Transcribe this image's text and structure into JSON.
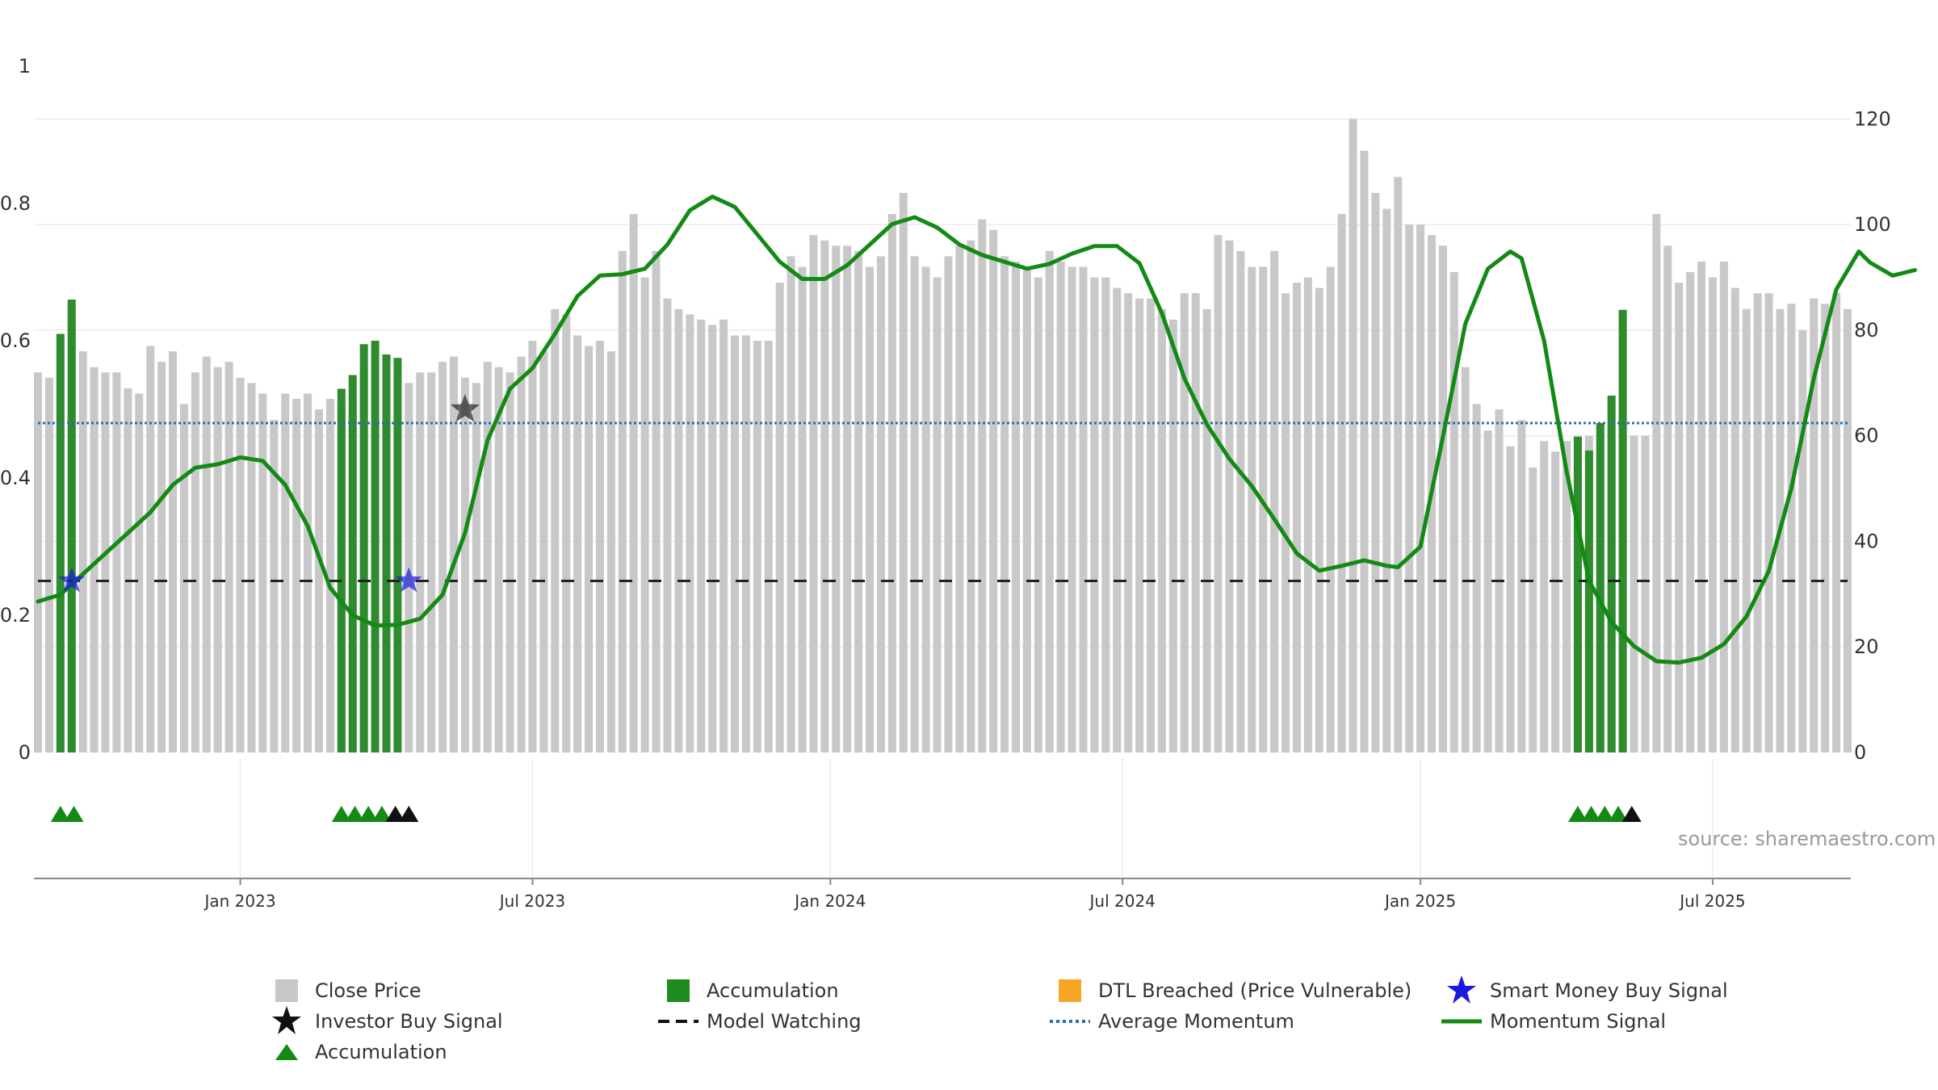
{
  "chart_data": {
    "type": "bar",
    "source_label": "source: sharemaestro.com",
    "left_axis": {
      "range": [
        0,
        1
      ],
      "ticks": [
        "0",
        "0.2",
        "0.4",
        "0.6",
        "0.8",
        "1"
      ]
    },
    "right_axis": {
      "range": [
        0,
        130
      ],
      "ticks": [
        "0",
        "20",
        "40",
        "60",
        "80",
        "100",
        "120"
      ]
    },
    "x_axis": {
      "ticks": [
        {
          "label": "Jan 2023",
          "week": 18
        },
        {
          "label": "Jul 2023",
          "week": 44
        },
        {
          "label": "Jan 2024",
          "week": 70.5
        },
        {
          "label": "Jul 2024",
          "week": 96.5
        },
        {
          "label": "Jan 2025",
          "week": 123
        },
        {
          "label": "Jul 2025",
          "week": 149
        }
      ]
    },
    "close_price": [
      72,
      71,
      75,
      81,
      76,
      73,
      72,
      72,
      69,
      68,
      77,
      74,
      76,
      66,
      72,
      75,
      73,
      74,
      71,
      70,
      68,
      63,
      68,
      67,
      68,
      65,
      67,
      66,
      67,
      73,
      72,
      73,
      72,
      70,
      72,
      72,
      74,
      75,
      71,
      70,
      74,
      73,
      72,
      75,
      78,
      76,
      84,
      83,
      79,
      77,
      78,
      76,
      95,
      102,
      90,
      95,
      86,
      84,
      83,
      82,
      81,
      82,
      79,
      79,
      78,
      78,
      89,
      94,
      92,
      98,
      97,
      96,
      96,
      95,
      92,
      94,
      102,
      106,
      94,
      92,
      90,
      94,
      96,
      97,
      101,
      99,
      94,
      93,
      92,
      90,
      95,
      93,
      92,
      92,
      90,
      90,
      88,
      87,
      86,
      86,
      84,
      82,
      87,
      87,
      84,
      98,
      97,
      95,
      92,
      92,
      95,
      87,
      89,
      90,
      88,
      92,
      102,
      120,
      114,
      106,
      103,
      109,
      100,
      100,
      98,
      96,
      91,
      73,
      66,
      61,
      65,
      58,
      63,
      54,
      59,
      57,
      59,
      60,
      60,
      60,
      60,
      60,
      60,
      60,
      102,
      96,
      89,
      91,
      93,
      90,
      93,
      88,
      84,
      87,
      87,
      84,
      85,
      80,
      86,
      85,
      87,
      84
    ],
    "accumulation_bars": [
      {
        "week": 2,
        "value": 0.61
      },
      {
        "week": 3,
        "value": 0.66
      },
      {
        "week": 27,
        "value": 0.53
      },
      {
        "week": 28,
        "value": 0.55
      },
      {
        "week": 29,
        "value": 0.595
      },
      {
        "week": 30,
        "value": 0.6
      },
      {
        "week": 31,
        "value": 0.58
      },
      {
        "week": 32,
        "value": 0.575
      },
      {
        "week": 137,
        "value": 0.46
      },
      {
        "week": 138,
        "value": 0.44
      },
      {
        "week": 139,
        "value": 0.48
      },
      {
        "week": 140,
        "value": 0.52
      },
      {
        "week": 141,
        "value": 0.645
      }
    ],
    "momentum": [
      [
        0,
        0.22
      ],
      [
        2,
        0.23
      ],
      [
        4,
        0.26
      ],
      [
        6,
        0.29
      ],
      [
        8,
        0.32
      ],
      [
        10,
        0.35
      ],
      [
        12,
        0.39
      ],
      [
        14,
        0.415
      ],
      [
        16,
        0.42
      ],
      [
        18,
        0.43
      ],
      [
        20,
        0.425
      ],
      [
        22,
        0.39
      ],
      [
        24,
        0.33
      ],
      [
        26,
        0.24
      ],
      [
        28,
        0.2
      ],
      [
        30,
        0.185
      ],
      [
        32,
        0.186
      ],
      [
        34,
        0.195
      ],
      [
        36,
        0.23
      ],
      [
        38,
        0.32
      ],
      [
        40,
        0.455
      ],
      [
        42,
        0.53
      ],
      [
        44,
        0.56
      ],
      [
        46,
        0.61
      ],
      [
        48,
        0.665
      ],
      [
        50,
        0.695
      ],
      [
        52,
        0.697
      ],
      [
        54,
        0.705
      ],
      [
        56,
        0.74
      ],
      [
        58,
        0.79
      ],
      [
        60,
        0.81
      ],
      [
        62,
        0.795
      ],
      [
        64,
        0.755
      ],
      [
        66,
        0.715
      ],
      [
        68,
        0.69
      ],
      [
        70,
        0.69
      ],
      [
        72,
        0.71
      ],
      [
        74,
        0.74
      ],
      [
        76,
        0.77
      ],
      [
        78,
        0.78
      ],
      [
        80,
        0.765
      ],
      [
        82,
        0.74
      ],
      [
        84,
        0.725
      ],
      [
        86,
        0.715
      ],
      [
        88,
        0.705
      ],
      [
        90,
        0.712
      ],
      [
        92,
        0.727
      ],
      [
        94,
        0.738
      ],
      [
        96,
        0.738
      ],
      [
        98,
        0.713
      ],
      [
        100,
        0.64
      ],
      [
        102,
        0.545
      ],
      [
        104,
        0.478
      ],
      [
        106,
        0.428
      ],
      [
        108,
        0.388
      ],
      [
        110,
        0.34
      ],
      [
        112,
        0.29
      ],
      [
        114,
        0.265
      ],
      [
        116,
        0.272
      ],
      [
        118,
        0.28
      ],
      [
        120,
        0.272
      ],
      [
        121,
        0.27
      ],
      [
        123,
        0.3
      ],
      [
        125,
        0.46
      ],
      [
        127,
        0.625
      ],
      [
        129,
        0.705
      ],
      [
        131,
        0.73
      ],
      [
        132,
        0.72
      ],
      [
        134,
        0.6
      ],
      [
        136,
        0.41
      ],
      [
        138,
        0.25
      ],
      [
        140,
        0.19
      ],
      [
        142,
        0.155
      ],
      [
        144,
        0.133
      ],
      [
        146,
        0.131
      ],
      [
        148,
        0.138
      ],
      [
        150,
        0.158
      ],
      [
        152,
        0.198
      ],
      [
        154,
        0.265
      ],
      [
        156,
        0.385
      ],
      [
        158,
        0.545
      ],
      [
        160,
        0.675
      ],
      [
        162,
        0.73
      ],
      [
        163,
        0.714
      ],
      [
        165,
        0.695
      ],
      [
        167,
        0.703
      ]
    ],
    "average_momentum": 0.48,
    "model_watching": 0.25,
    "smart_money_buy_signals": [
      {
        "week": 3,
        "value": 0.25
      },
      {
        "week": 33,
        "value": 0.25
      }
    ],
    "investor_buy_signals": [
      {
        "week": 38,
        "value": 0.5
      }
    ],
    "accumulation_triangles": [
      {
        "week": 2,
        "color": "green"
      },
      {
        "week": 3.2,
        "color": "green"
      },
      {
        "week": 27,
        "color": "green"
      },
      {
        "week": 28.2,
        "color": "green"
      },
      {
        "week": 29.4,
        "color": "green"
      },
      {
        "week": 30.6,
        "color": "green"
      },
      {
        "week": 31.8,
        "color": "black"
      },
      {
        "week": 33,
        "color": "black"
      },
      {
        "week": 137,
        "color": "green"
      },
      {
        "week": 138.2,
        "color": "green"
      },
      {
        "week": 139.4,
        "color": "green"
      },
      {
        "week": 140.6,
        "color": "green"
      },
      {
        "week": 141.8,
        "color": "black"
      }
    ],
    "legend": {
      "close_price": "Close Price",
      "accumulation_bar": "Accumulation",
      "dtl_breached": "DTL Breached (Price Vulnerable)",
      "smart_money": "Smart Money Buy Signal",
      "investor_buy": "Investor Buy Signal",
      "model_watching": "Model Watching",
      "average_momentum": "Average Momentum",
      "momentum_signal": "Momentum Signal",
      "accumulation_marker": "Accumulation"
    }
  },
  "colors": {
    "close_bar": "#c8c8c8",
    "accumulation": "#2e8b2e",
    "dtl": "#f5a623",
    "smart_money": "#1a1adb",
    "momentum": "#138a13",
    "average_momentum": "#2a6fa8",
    "model_watching": "#222222",
    "triangle_green": "#138a13",
    "triangle_black": "#111111"
  }
}
